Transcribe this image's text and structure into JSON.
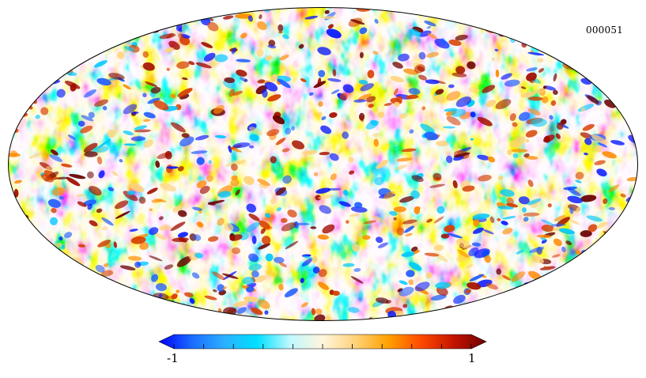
{
  "map": {
    "projection": "mollweide",
    "identifier": "000051",
    "description_kind": "full-sky temperature anisotropy map"
  },
  "colorbar": {
    "min_label": "-1",
    "max_label": "1",
    "min_value": -1,
    "max_value": 1,
    "tick_count": 11,
    "extend": "both",
    "colors": [
      "#0000ff",
      "#1a6bff",
      "#2bb0ff",
      "#00e0ff",
      "#bff8ff",
      "#fff6dc",
      "#ffd27a",
      "#ffa100",
      "#ff4a00",
      "#c41400",
      "#6b0000"
    ]
  }
}
